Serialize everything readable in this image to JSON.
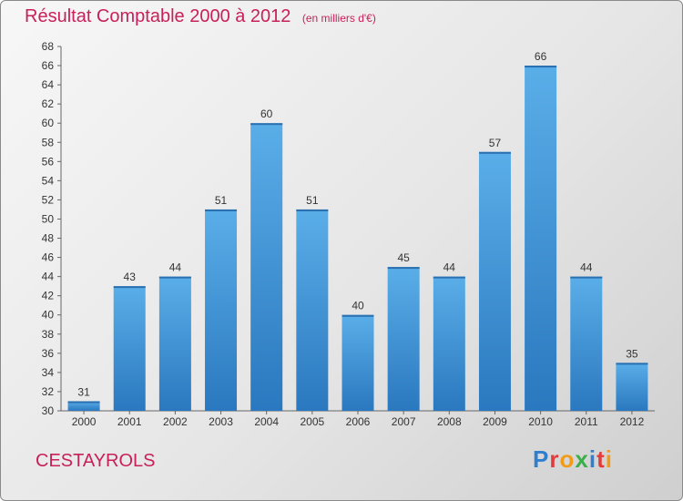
{
  "header": {
    "title": "Résultat Comptable 2000 à 2012",
    "subtitle": "(en milliers d'€)"
  },
  "footer": {
    "place": "CESTAYROLS",
    "logo_text": "Proxiti",
    "logo_colors": [
      "#2f7fd0",
      "#e23b3b",
      "#f29b18",
      "#3bb04a",
      "#2f7fd0",
      "#e23b3b",
      "#f29b18"
    ]
  },
  "chart_data": {
    "type": "bar",
    "title": "Résultat Comptable 2000 à 2012",
    "subtitle": "(en milliers d'€)",
    "xlabel": "",
    "ylabel": "",
    "categories": [
      "2000",
      "2001",
      "2002",
      "2003",
      "2004",
      "2005",
      "2006",
      "2007",
      "2008",
      "2009",
      "2010",
      "2011",
      "2012"
    ],
    "values": [
      31,
      43,
      44,
      51,
      60,
      51,
      40,
      45,
      44,
      57,
      66,
      44,
      35
    ],
    "ylim": [
      30,
      68
    ],
    "yticks": [
      30,
      32,
      34,
      36,
      38,
      40,
      42,
      44,
      46,
      48,
      50,
      52,
      54,
      56,
      58,
      60,
      62,
      64,
      66,
      68
    ],
    "grid": false,
    "bar_color": "#3b90d6"
  }
}
